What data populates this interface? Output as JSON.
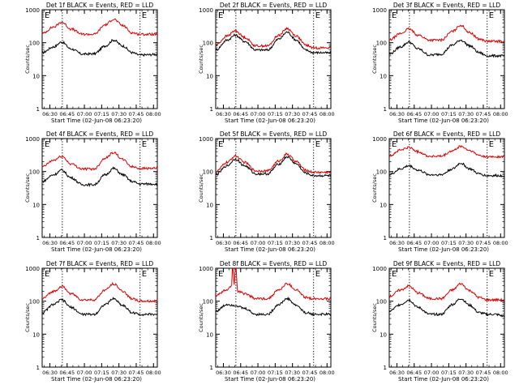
{
  "figure": {
    "xlabel": "Start Time (02-Jun-08 06:23:20)",
    "ylabel": "Counts/sec",
    "x_tick_labels": [
      "06:30",
      "06:45",
      "07:00",
      "07:15",
      "07:30",
      "07:45",
      "08:00"
    ],
    "y_tick_labels": [
      "1",
      "10",
      "100",
      "1000"
    ],
    "event_marker_label": "E",
    "colors": {
      "events": "#000000",
      "lld": "#e00000",
      "axes": "#000000",
      "background": "#ffffff"
    }
  },
  "chart_data": [
    {
      "type": "line",
      "title": "Det 1f BLACK = Events, RED = LLD",
      "xlabel": "Start Time (02-Jun-08 06:23:20)",
      "ylabel": "Counts/sec",
      "x_unit": "minutes after 06:23:20",
      "xlim": [
        0,
        100
      ],
      "y_scale": "log",
      "ylim": [
        1,
        1000
      ],
      "marker_x": [
        17.5,
        85
      ],
      "series": [
        {
          "name": "Events",
          "color": "#000000",
          "x": [
            0,
            10,
            17,
            25,
            35,
            45,
            55,
            62,
            70,
            78,
            85,
            92,
            100
          ],
          "y": [
            50,
            75,
            105,
            65,
            45,
            46,
            80,
            120,
            80,
            50,
            42,
            43,
            45
          ]
        },
        {
          "name": "LLD",
          "color": "#e00000",
          "x": [
            0,
            10,
            17,
            25,
            35,
            45,
            55,
            62,
            70,
            78,
            85,
            92,
            100
          ],
          "y": [
            190,
            300,
            420,
            260,
            180,
            180,
            350,
            520,
            330,
            200,
            180,
            180,
            180
          ]
        }
      ]
    },
    {
      "type": "line",
      "title": "Det 2f BLACK = Events, RED = LLD",
      "xlabel": "Start Time (02-Jun-08 06:23:20)",
      "ylabel": "Counts/sec",
      "x_unit": "minutes after 06:23:20",
      "xlim": [
        0,
        100
      ],
      "y_scale": "log",
      "ylim": [
        1,
        1000
      ],
      "marker_x": [
        17.5,
        85
      ],
      "series": [
        {
          "name": "Events",
          "color": "#000000",
          "x": [
            0,
            10,
            17,
            25,
            35,
            45,
            55,
            62,
            70,
            78,
            85,
            92,
            100
          ],
          "y": [
            60,
            120,
            170,
            110,
            60,
            60,
            130,
            210,
            120,
            60,
            50,
            50,
            48
          ]
        },
        {
          "name": "LLD",
          "color": "#e00000",
          "x": [
            0,
            10,
            17,
            25,
            35,
            45,
            55,
            62,
            70,
            78,
            85,
            92,
            100
          ],
          "y": [
            85,
            160,
            230,
            145,
            80,
            80,
            170,
            270,
            160,
            85,
            70,
            70,
            70
          ]
        }
      ]
    },
    {
      "type": "line",
      "title": "Det 3f BLACK = Events, RED = LLD",
      "xlabel": "Start Time (02-Jun-08 06:23:20)",
      "ylabel": "Counts/sec",
      "x_unit": "minutes after 06:23:20",
      "xlim": [
        0,
        100
      ],
      "y_scale": "log",
      "ylim": [
        1,
        1000
      ],
      "marker_x": [
        17.5,
        85
      ],
      "series": [
        {
          "name": "Events",
          "color": "#000000",
          "x": [
            0,
            10,
            17,
            25,
            35,
            45,
            55,
            62,
            70,
            78,
            85,
            92,
            100
          ],
          "y": [
            45,
            75,
            105,
            65,
            42,
            45,
            85,
            120,
            80,
            50,
            40,
            40,
            40
          ]
        },
        {
          "name": "LLD",
          "color": "#e00000",
          "x": [
            0,
            10,
            17,
            25,
            35,
            45,
            55,
            62,
            70,
            78,
            85,
            92,
            100
          ],
          "y": [
            120,
            190,
            260,
            170,
            120,
            120,
            220,
            340,
            200,
            130,
            110,
            110,
            110
          ]
        }
      ]
    },
    {
      "type": "line",
      "title": "Det 4f BLACK = Events, RED = LLD",
      "xlabel": "Start Time (02-Jun-08 06:23:20)",
      "ylabel": "Counts/sec",
      "x_unit": "minutes after 06:23:20",
      "xlim": [
        0,
        100
      ],
      "y_scale": "log",
      "ylim": [
        1,
        1000
      ],
      "marker_x": [
        17.5,
        85
      ],
      "series": [
        {
          "name": "Events",
          "color": "#000000",
          "x": [
            0,
            10,
            17,
            25,
            35,
            45,
            55,
            62,
            70,
            78,
            85,
            92,
            100
          ],
          "y": [
            50,
            80,
            110,
            65,
            40,
            40,
            80,
            125,
            80,
            50,
            42,
            42,
            42
          ]
        },
        {
          "name": "LLD",
          "color": "#e00000",
          "x": [
            0,
            10,
            17,
            25,
            35,
            45,
            55,
            62,
            70,
            78,
            85,
            92,
            100
          ],
          "y": [
            140,
            220,
            290,
            170,
            120,
            120,
            260,
            380,
            230,
            140,
            125,
            125,
            125
          ]
        }
      ]
    },
    {
      "type": "line",
      "title": "Det 5f BLACK = Events, RED = LLD",
      "xlabel": "Start Time (02-Jun-08 06:23:20)",
      "ylabel": "Counts/sec",
      "x_unit": "minutes after 06:23:20",
      "xlim": [
        0,
        100
      ],
      "y_scale": "log",
      "ylim": [
        1,
        1000
      ],
      "marker_x": [
        17.5,
        85
      ],
      "series": [
        {
          "name": "Events",
          "color": "#000000",
          "x": [
            0,
            10,
            17,
            25,
            35,
            45,
            55,
            62,
            70,
            78,
            85,
            92,
            100
          ],
          "y": [
            80,
            150,
            240,
            150,
            85,
            85,
            170,
            280,
            170,
            90,
            75,
            75,
            75
          ]
        },
        {
          "name": "LLD",
          "color": "#e00000",
          "x": [
            0,
            10,
            17,
            25,
            35,
            45,
            55,
            62,
            70,
            78,
            85,
            92,
            100
          ],
          "y": [
            100,
            190,
            300,
            190,
            105,
            105,
            210,
            340,
            200,
            110,
            95,
            95,
            95
          ]
        }
      ]
    },
    {
      "type": "line",
      "title": "Det 6f BLACK = Events, RED = LLD",
      "xlabel": "Start Time (02-Jun-08 06:23:20)",
      "ylabel": "Counts/sec",
      "x_unit": "minutes after 06:23:20",
      "xlim": [
        0,
        100
      ],
      "y_scale": "log",
      "ylim": [
        1,
        1000
      ],
      "marker_x": [
        17.5,
        85
      ],
      "series": [
        {
          "name": "Events",
          "color": "#000000",
          "x": [
            0,
            10,
            17,
            25,
            35,
            45,
            55,
            62,
            70,
            78,
            85,
            92,
            100
          ],
          "y": [
            80,
            120,
            150,
            110,
            80,
            80,
            120,
            180,
            120,
            85,
            75,
            75,
            75
          ]
        },
        {
          "name": "LLD",
          "color": "#e00000",
          "x": [
            0,
            10,
            17,
            25,
            35,
            45,
            55,
            62,
            70,
            78,
            85,
            92,
            100
          ],
          "y": [
            300,
            450,
            540,
            400,
            290,
            290,
            420,
            580,
            430,
            310,
            280,
            280,
            280
          ]
        }
      ]
    },
    {
      "type": "line",
      "title": "Det 7f BLACK = Events, RED = LLD",
      "xlabel": "Start Time (02-Jun-08 06:23:20)",
      "ylabel": "Counts/sec",
      "x_unit": "minutes after 06:23:20",
      "xlim": [
        0,
        100
      ],
      "y_scale": "log",
      "ylim": [
        1,
        1000
      ],
      "marker_x": [
        17.5,
        85
      ],
      "series": [
        {
          "name": "Events",
          "color": "#000000",
          "x": [
            0,
            10,
            17,
            25,
            35,
            45,
            55,
            62,
            70,
            78,
            85,
            92,
            100
          ],
          "y": [
            45,
            80,
            110,
            65,
            40,
            40,
            80,
            120,
            75,
            45,
            40,
            40,
            40
          ]
        },
        {
          "name": "LLD",
          "color": "#e00000",
          "x": [
            0,
            10,
            17,
            25,
            35,
            45,
            55,
            62,
            70,
            78,
            85,
            92,
            100
          ],
          "y": [
            120,
            200,
            280,
            170,
            110,
            110,
            220,
            340,
            200,
            120,
            100,
            100,
            100
          ]
        }
      ]
    },
    {
      "type": "line",
      "title": "Det 8f BLACK = Events, RED = LLD",
      "xlabel": "Start Time (02-Jun-08 06:23:20)",
      "ylabel": "Counts/sec",
      "x_unit": "minutes after 06:23:20",
      "xlim": [
        0,
        100
      ],
      "y_scale": "log",
      "ylim": [
        1,
        1000
      ],
      "marker_x": [
        17.5,
        85
      ],
      "annotation": "LLD saturated spikes near 06:40–06:42",
      "series": [
        {
          "name": "Events",
          "color": "#000000",
          "x": [
            0,
            10,
            17,
            25,
            35,
            45,
            55,
            62,
            70,
            78,
            85,
            92,
            100
          ],
          "y": [
            50,
            80,
            75,
            60,
            40,
            40,
            80,
            120,
            75,
            45,
            40,
            40,
            40
          ]
        },
        {
          "name": "LLD",
          "color": "#e00000",
          "x": [
            0,
            10,
            14,
            14.5,
            15,
            16,
            17,
            18,
            18.5,
            19,
            25,
            35,
            45,
            55,
            62,
            70,
            78,
            85,
            92,
            100
          ],
          "y": [
            150,
            220,
            300,
            1000,
            1000,
            300,
            1000,
            1000,
            300,
            200,
            170,
            120,
            120,
            220,
            340,
            220,
            130,
            120,
            120,
            120
          ]
        }
      ]
    },
    {
      "type": "line",
      "title": "Det 9f BLACK = Events, RED = LLD",
      "xlabel": "Start Time (02-Jun-08 06:23:20)",
      "ylabel": "Counts/sec",
      "x_unit": "minutes after 06:23:20",
      "xlim": [
        0,
        100
      ],
      "y_scale": "log",
      "ylim": [
        1,
        1000
      ],
      "marker_x": [
        17.5,
        85
      ],
      "series": [
        {
          "name": "Events",
          "color": "#000000",
          "x": [
            0,
            10,
            17,
            25,
            35,
            45,
            55,
            62,
            70,
            78,
            85,
            92,
            100
          ],
          "y": [
            50,
            80,
            110,
            65,
            40,
            40,
            80,
            120,
            75,
            45,
            40,
            40,
            35
          ]
        },
        {
          "name": "LLD",
          "color": "#e00000",
          "x": [
            0,
            10,
            17,
            25,
            35,
            45,
            55,
            62,
            70,
            78,
            85,
            92,
            100
          ],
          "y": [
            140,
            220,
            290,
            180,
            120,
            120,
            220,
            340,
            210,
            130,
            110,
            110,
            110
          ]
        }
      ]
    }
  ]
}
